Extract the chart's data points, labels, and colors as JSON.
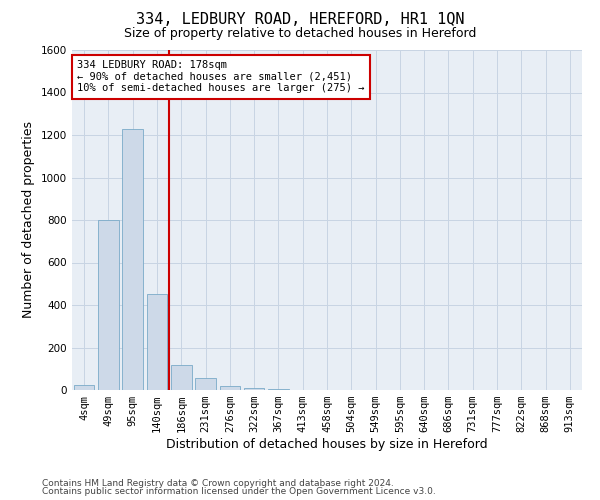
{
  "title": "334, LEDBURY ROAD, HEREFORD, HR1 1QN",
  "subtitle": "Size of property relative to detached houses in Hereford",
  "xlabel": "Distribution of detached houses by size in Hereford",
  "ylabel": "Number of detached properties",
  "footer_line1": "Contains HM Land Registry data © Crown copyright and database right 2024.",
  "footer_line2": "Contains public sector information licensed under the Open Government Licence v3.0.",
  "categories": [
    "4sqm",
    "49sqm",
    "95sqm",
    "140sqm",
    "186sqm",
    "231sqm",
    "276sqm",
    "322sqm",
    "367sqm",
    "413sqm",
    "458sqm",
    "504sqm",
    "549sqm",
    "595sqm",
    "640sqm",
    "686sqm",
    "731sqm",
    "777sqm",
    "822sqm",
    "868sqm",
    "913sqm"
  ],
  "values": [
    25,
    800,
    1230,
    450,
    120,
    55,
    20,
    10,
    5,
    2,
    2,
    0,
    0,
    0,
    0,
    0,
    0,
    0,
    0,
    0,
    0
  ],
  "bar_color": "#cdd9e8",
  "bar_edge_color": "#7aaac8",
  "red_line_index": 4,
  "red_line_color": "#cc0000",
  "annotation_line1": "334 LEDBURY ROAD: 178sqm",
  "annotation_line2": "← 90% of detached houses are smaller (2,451)",
  "annotation_line3": "10% of semi-detached houses are larger (275) →",
  "annotation_box_color": "#cc0000",
  "ylim": [
    0,
    1600
  ],
  "yticks": [
    0,
    200,
    400,
    600,
    800,
    1000,
    1200,
    1400,
    1600
  ],
  "grid_color": "#c8d4e3",
  "bg_color": "#e8eef5",
  "title_fontsize": 11,
  "subtitle_fontsize": 9,
  "axis_label_fontsize": 9,
  "tick_fontsize": 7.5,
  "footer_fontsize": 6.5,
  "annot_fontsize": 7.5
}
